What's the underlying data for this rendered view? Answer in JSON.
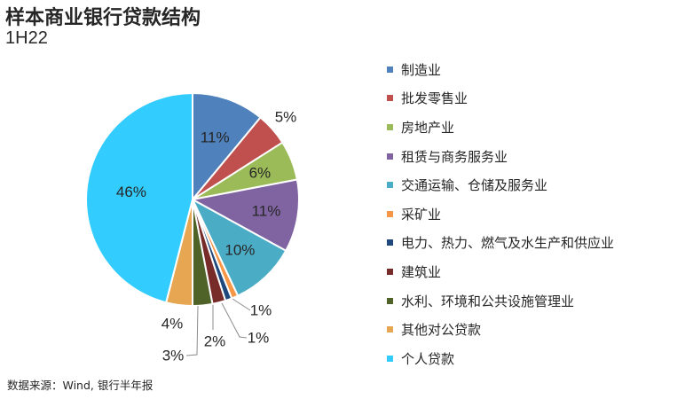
{
  "title": "样本商业银行贷款结构",
  "subtitle": "1H22",
  "source": "数据来源：Wind, 银行半年报",
  "chart_data": {
    "type": "pie",
    "unit": "%",
    "slices": [
      {
        "name": "制造业",
        "value": 11,
        "label": "11%",
        "color": "#4F81BD"
      },
      {
        "name": "批发零售业",
        "value": 5,
        "label": "5%",
        "color": "#C0504D"
      },
      {
        "name": "房地产业",
        "value": 6,
        "label": "6%",
        "color": "#9BBB59"
      },
      {
        "name": "租赁与商务服务业",
        "value": 11,
        "label": "11%",
        "color": "#8064A2"
      },
      {
        "name": "交通运输、仓储及服务业",
        "value": 10,
        "label": "10%",
        "color": "#4BACC6"
      },
      {
        "name": "采矿业",
        "value": 1,
        "label": "1%",
        "color": "#F79646"
      },
      {
        "name": "电力、热力、燃气及水生产和供应业",
        "value": 1,
        "label": "1%",
        "color": "#1F497D"
      },
      {
        "name": "建筑业",
        "value": 2,
        "label": "2%",
        "color": "#772C2A"
      },
      {
        "name": "水利、环境和公共设施管理业",
        "value": 3,
        "label": "3%",
        "color": "#4F6228"
      },
      {
        "name": "其他对公贷款",
        "value": 4,
        "label": "4%",
        "color": "#E6A652"
      },
      {
        "name": "个人贷款",
        "value": 46,
        "label": "46%",
        "color": "#33CCFF"
      }
    ],
    "legend": "right"
  }
}
